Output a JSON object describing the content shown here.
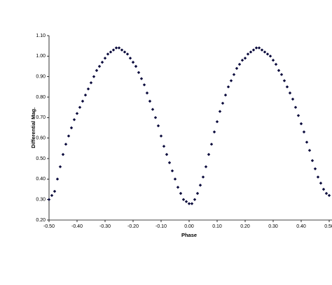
{
  "chart_data": {
    "type": "scatter",
    "x_label": "Phase",
    "y_label": "Differential Mag.",
    "xlim": [
      -0.5,
      0.5
    ],
    "ylim": [
      0.2,
      1.1
    ],
    "xticks": [
      {
        "value": -0.5,
        "label": "-0.50"
      },
      {
        "value": -0.4,
        "label": "-0.40"
      },
      {
        "value": -0.3,
        "label": "-0.30"
      },
      {
        "value": -0.2,
        "label": "-0.20"
      },
      {
        "value": -0.1,
        "label": "-0.10"
      },
      {
        "value": 0,
        "label": "0.00"
      },
      {
        "value": 0.1,
        "label": "0.10"
      },
      {
        "value": 0.2,
        "label": "0.20"
      },
      {
        "value": 0.3,
        "label": "0.30"
      },
      {
        "value": 0.4,
        "label": "0.40"
      },
      {
        "value": 0.5,
        "label": "0.50"
      }
    ],
    "yticks": [
      {
        "value": 0.2,
        "label": "0.20"
      },
      {
        "value": 0.3,
        "label": "0.30"
      },
      {
        "value": 0.4,
        "label": "0.40"
      },
      {
        "value": 0.5,
        "label": "0.50"
      },
      {
        "value": 0.6,
        "label": "0.60"
      },
      {
        "value": 0.7,
        "label": "0.70"
      },
      {
        "value": 0.8,
        "label": "0.80"
      },
      {
        "value": 0.9,
        "label": "0.90"
      },
      {
        "value": 1.0,
        "label": "1.00"
      },
      {
        "value": 1.1,
        "label": "1.10"
      }
    ],
    "grid": false,
    "series": [
      {
        "color": "#0a0a3c",
        "x": [
          -0.5,
          -0.49,
          -0.48,
          -0.47,
          -0.46,
          -0.45,
          -0.44,
          -0.43,
          -0.42,
          -0.41,
          -0.4,
          -0.39,
          -0.38,
          -0.37,
          -0.36,
          -0.35,
          -0.34,
          -0.33,
          -0.32,
          -0.31,
          -0.3,
          -0.29,
          -0.28,
          -0.27,
          -0.26,
          -0.25,
          -0.24,
          -0.23,
          -0.22,
          -0.21,
          -0.2,
          -0.19,
          -0.18,
          -0.17,
          -0.16,
          -0.15,
          -0.14,
          -0.13,
          -0.12,
          -0.11,
          -0.1,
          -0.09,
          -0.08,
          -0.07,
          -0.06,
          -0.05,
          -0.04,
          -0.03,
          -0.02,
          -0.01,
          0,
          0.01,
          0.02,
          0.03,
          0.04,
          0.05,
          0.06,
          0.07,
          0.08,
          0.09,
          0.1,
          0.11,
          0.12,
          0.13,
          0.14,
          0.15,
          0.16,
          0.17,
          0.18,
          0.19,
          0.2,
          0.21,
          0.22,
          0.23,
          0.24,
          0.25,
          0.26,
          0.27,
          0.28,
          0.29,
          0.3,
          0.31,
          0.32,
          0.33,
          0.34,
          0.35,
          0.36,
          0.37,
          0.38,
          0.39,
          0.4,
          0.41,
          0.42,
          0.43,
          0.44,
          0.45,
          0.46,
          0.47,
          0.48,
          0.49,
          0.5
        ],
        "values": [
          0.3,
          0.32,
          0.34,
          0.4,
          0.46,
          0.52,
          0.57,
          0.61,
          0.65,
          0.69,
          0.72,
          0.75,
          0.78,
          0.81,
          0.84,
          0.87,
          0.9,
          0.93,
          0.95,
          0.97,
          0.99,
          1.01,
          1.02,
          1.03,
          1.04,
          1.04,
          1.03,
          1.02,
          1.01,
          0.99,
          0.97,
          0.95,
          0.92,
          0.89,
          0.86,
          0.82,
          0.78,
          0.74,
          0.7,
          0.66,
          0.61,
          0.56,
          0.52,
          0.48,
          0.44,
          0.4,
          0.36,
          0.33,
          0.3,
          0.29,
          0.28,
          0.28,
          0.3,
          0.33,
          0.37,
          0.41,
          0.46,
          0.52,
          0.57,
          0.63,
          0.68,
          0.73,
          0.77,
          0.81,
          0.85,
          0.88,
          0.91,
          0.94,
          0.96,
          0.98,
          0.99,
          1.01,
          1.02,
          1.03,
          1.04,
          1.04,
          1.03,
          1.02,
          1.01,
          1.0,
          0.98,
          0.96,
          0.93,
          0.91,
          0.88,
          0.85,
          0.82,
          0.79,
          0.75,
          0.71,
          0.67,
          0.63,
          0.58,
          0.54,
          0.49,
          0.45,
          0.41,
          0.38,
          0.35,
          0.33,
          0.32
        ]
      }
    ]
  }
}
